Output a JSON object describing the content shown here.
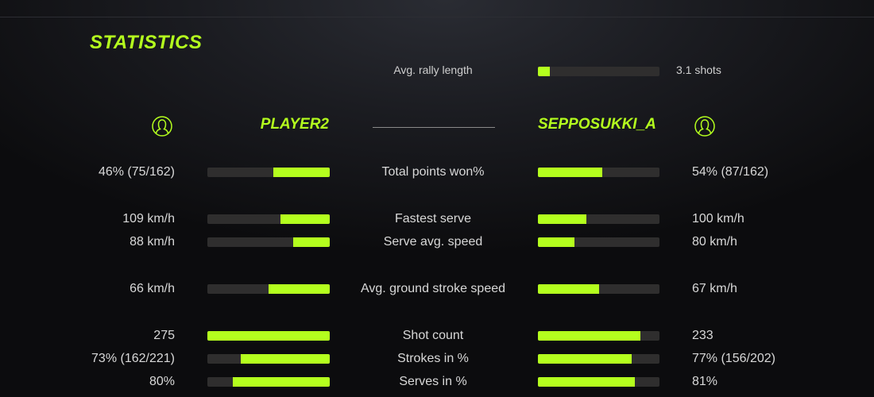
{
  "colors": {
    "accent": "#b4ff1e",
    "bar_track": "#2f2e2e",
    "background": "#1b1c21"
  },
  "title": "STATISTICS",
  "rally": {
    "label": "Avg. rally length",
    "value": "3.1 shots",
    "fill": 0.1
  },
  "players": {
    "left": {
      "name": "PLAYER2",
      "icon": "user-circle-icon"
    },
    "right": {
      "name": "SEPPOSUKKI_A",
      "icon": "user-circle-icon"
    }
  },
  "stats": [
    {
      "label": "Total points won%",
      "left": "46% (75/162)",
      "right": "54% (87/162)",
      "left_fill": 0.46,
      "right_fill": 0.53
    },
    {
      "label": "Fastest serve",
      "left": "109 km/h",
      "right": "100 km/h",
      "left_fill": 0.4,
      "right_fill": 0.4
    },
    {
      "label": "Serve avg. speed",
      "left": "88 km/h",
      "right": "80 km/h",
      "left_fill": 0.3,
      "right_fill": 0.3
    },
    {
      "label": "Avg. ground stroke speed",
      "left": "66 km/h",
      "right": "67 km/h",
      "left_fill": 0.5,
      "right_fill": 0.5
    },
    {
      "label": "Shot count",
      "left": "275",
      "right": "233",
      "left_fill": 1.0,
      "right_fill": 0.84
    },
    {
      "label": "Strokes in %",
      "left": "73% (162/221)",
      "right": "77% (156/202)",
      "left_fill": 0.73,
      "right_fill": 0.77
    },
    {
      "label": "Serves in %",
      "left": "80%",
      "right": "81%",
      "left_fill": 0.79,
      "right_fill": 0.8
    }
  ]
}
